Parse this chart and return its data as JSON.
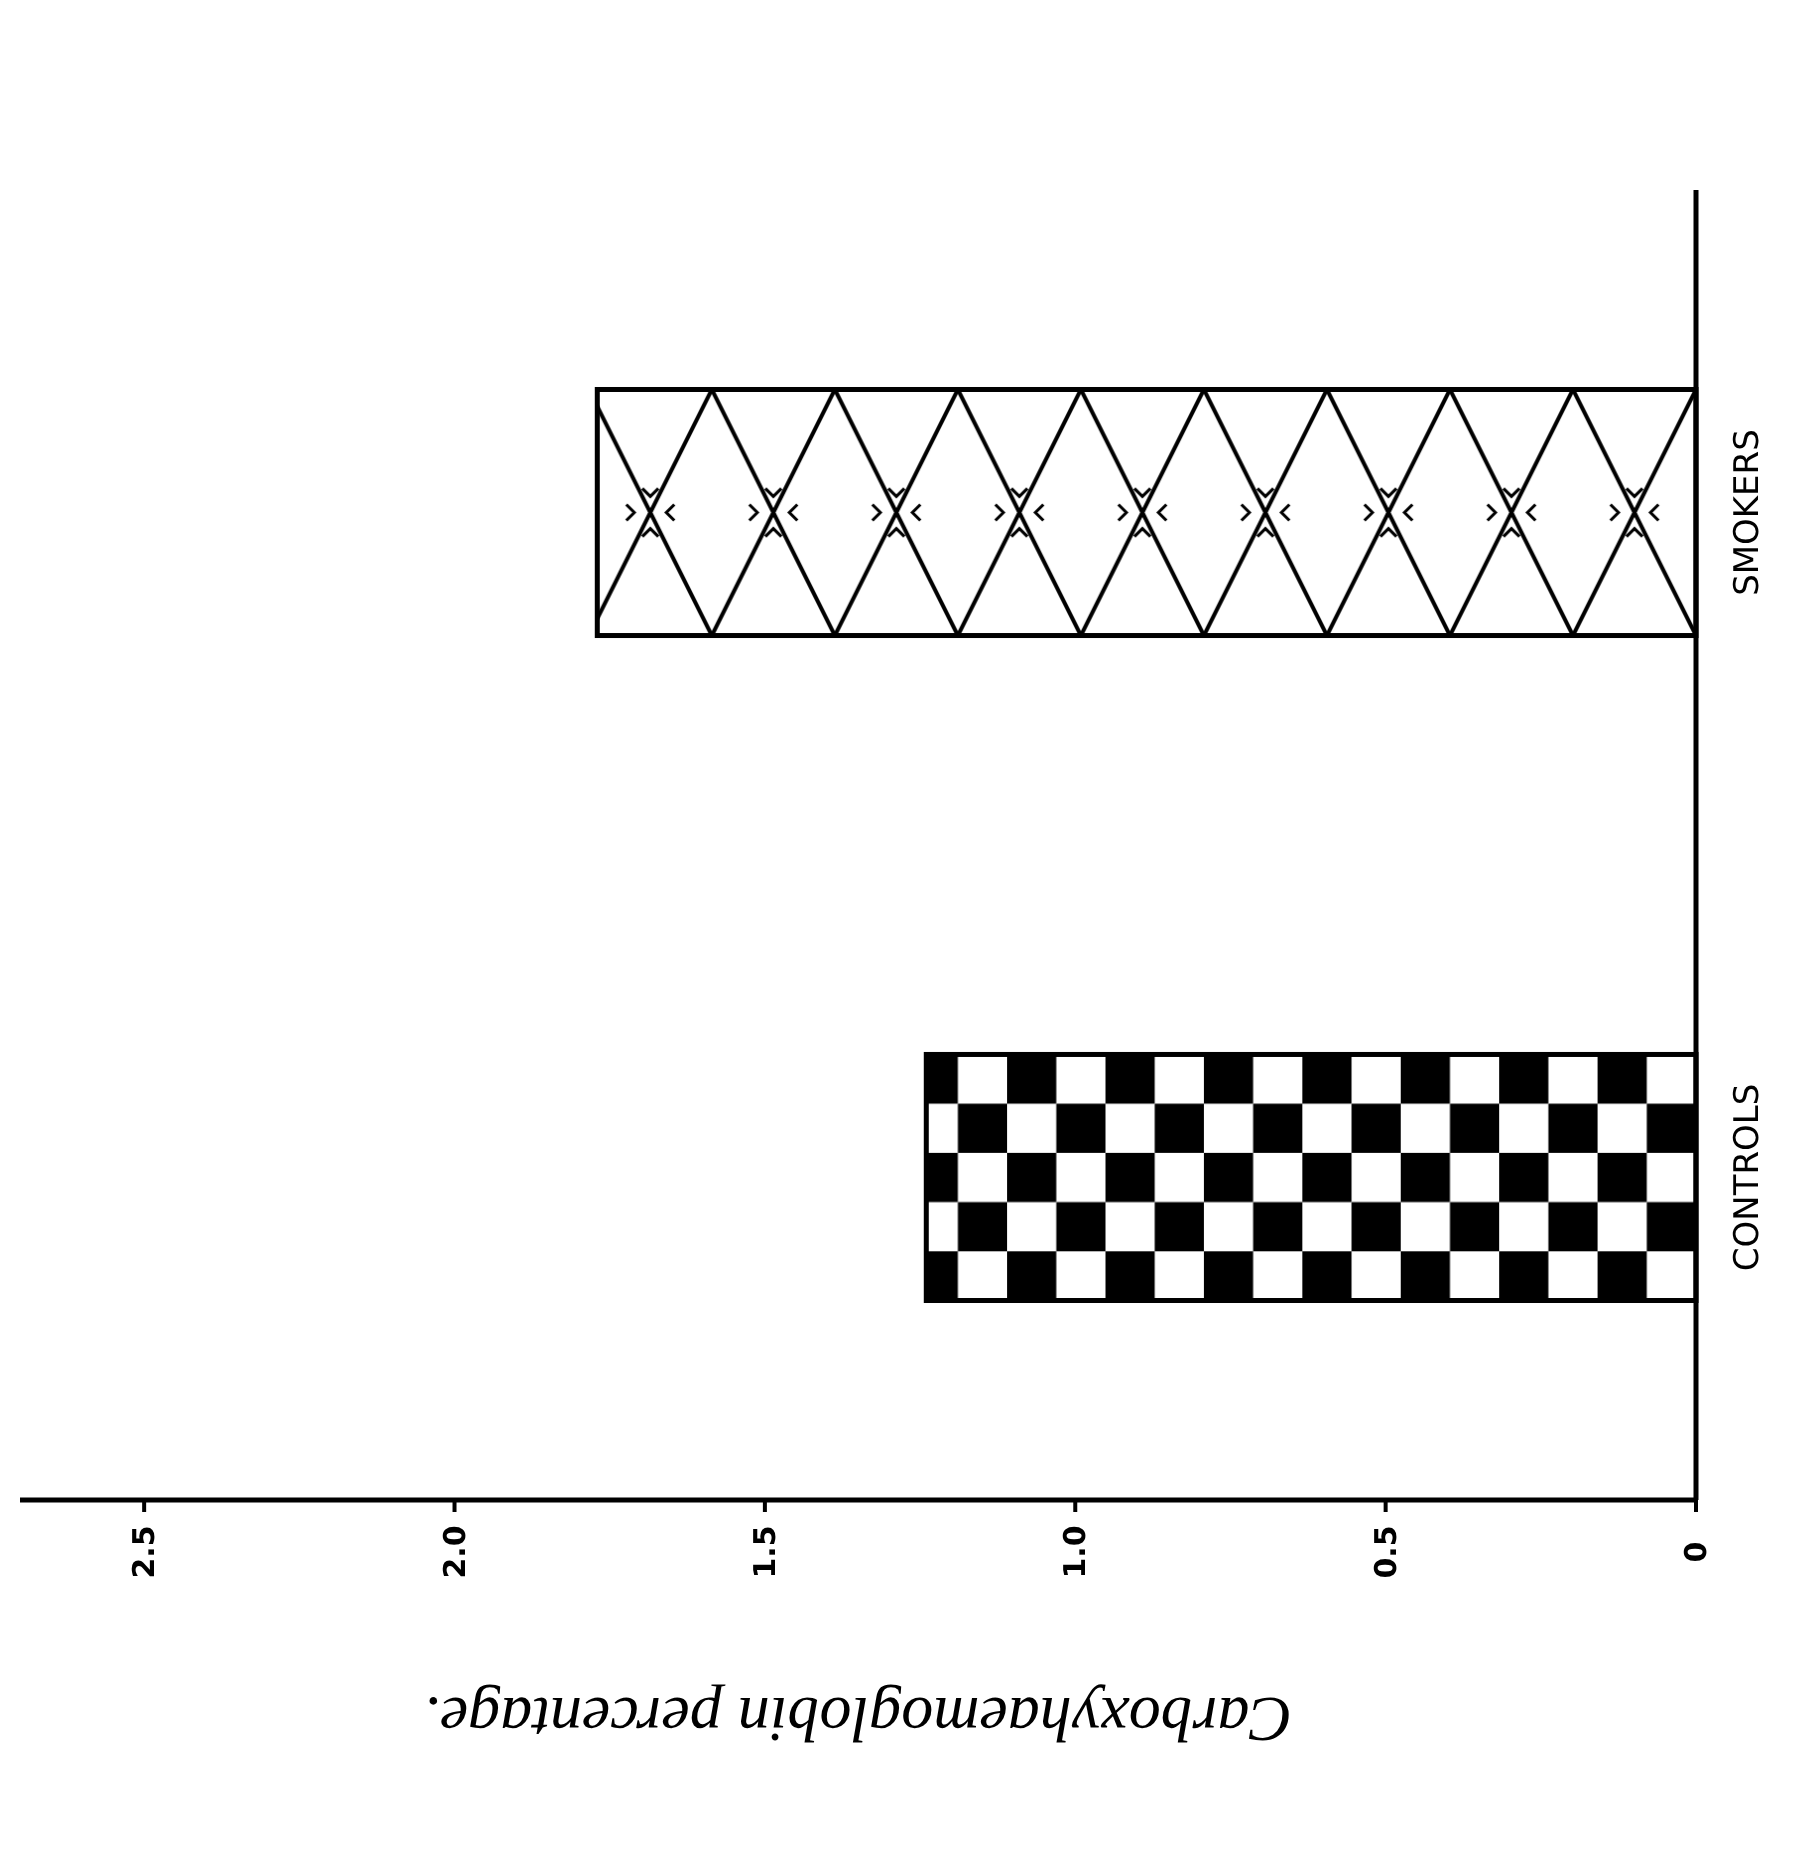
{
  "chart_data": {
    "type": "bar",
    "orientation": "horizontal",
    "xlabel": "Carboxyhaemoglobin percentage.",
    "categories": [
      "SMOKERS",
      "CONTROLS"
    ],
    "values": [
      1.77,
      1.24
    ],
    "colors": [
      "#000000",
      "#000000"
    ],
    "xlim": [
      2.7,
      0
    ],
    "xticks": [
      2.5,
      {
        "value": 2,
        "label": "2.0"
      },
      1.5,
      {
        "value": 1,
        "label": "1.0"
      },
      0.5,
      0
    ]
  }
}
